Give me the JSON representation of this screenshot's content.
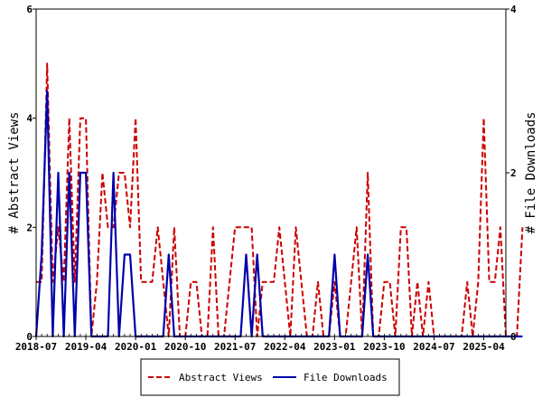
{
  "chart_data": {
    "type": "line",
    "x_start": "2018-07",
    "x_end": "2025-08",
    "x_ticks": [
      "2018-07",
      "2019-04",
      "2020-01",
      "2020-10",
      "2021-07",
      "2022-04",
      "2023-01",
      "2023-10",
      "2024-07",
      "2025-04"
    ],
    "ylabel_left": "# Abstract Views",
    "ylabel_right": "# File Downloads",
    "ylim_left": [
      0,
      6
    ],
    "ylim_right": [
      0,
      4
    ],
    "yticks_left": [
      "0",
      "2",
      "4",
      "6"
    ],
    "yticks_right": [
      "0",
      "2",
      "4"
    ],
    "series": [
      {
        "name": "Abstract Views",
        "axis": "left",
        "color": "#cc0000",
        "dash": "dashed",
        "points": [
          [
            "2018-07",
            1
          ],
          [
            "2018-08",
            1
          ],
          [
            "2018-09",
            5
          ],
          [
            "2018-10",
            1
          ],
          [
            "2018-11",
            2
          ],
          [
            "2018-12",
            1
          ],
          [
            "2019-01",
            4
          ],
          [
            "2019-02",
            1
          ],
          [
            "2019-03",
            4
          ],
          [
            "2019-04",
            4
          ],
          [
            "2019-05",
            0
          ],
          [
            "2019-06",
            1
          ],
          [
            "2019-07",
            3
          ],
          [
            "2019-08",
            2
          ],
          [
            "2019-09",
            2
          ],
          [
            "2019-10",
            3
          ],
          [
            "2019-11",
            3
          ],
          [
            "2019-12",
            2
          ],
          [
            "2020-01",
            4
          ],
          [
            "2020-02",
            1
          ],
          [
            "2020-03",
            1
          ],
          [
            "2020-04",
            1
          ],
          [
            "2020-05",
            2
          ],
          [
            "2020-06",
            1
          ],
          [
            "2020-07",
            0
          ],
          [
            "2020-08",
            2
          ],
          [
            "2020-09",
            0
          ],
          [
            "2020-10",
            0
          ],
          [
            "2020-11",
            1
          ],
          [
            "2020-12",
            1
          ],
          [
            "2021-01",
            0
          ],
          [
            "2021-02",
            0
          ],
          [
            "2021-03",
            2
          ],
          [
            "2021-04",
            0
          ],
          [
            "2021-05",
            0
          ],
          [
            "2021-06",
            1
          ],
          [
            "2021-07",
            2
          ],
          [
            "2021-08",
            2
          ],
          [
            "2021-09",
            2
          ],
          [
            "2021-10",
            2
          ],
          [
            "2021-11",
            0
          ],
          [
            "2021-12",
            1
          ],
          [
            "2022-01",
            1
          ],
          [
            "2022-02",
            1
          ],
          [
            "2022-03",
            2
          ],
          [
            "2022-04",
            1
          ],
          [
            "2022-05",
            0
          ],
          [
            "2022-06",
            2
          ],
          [
            "2022-07",
            1
          ],
          [
            "2022-08",
            0
          ],
          [
            "2022-09",
            0
          ],
          [
            "2022-10",
            1
          ],
          [
            "2022-11",
            0
          ],
          [
            "2022-12",
            0
          ],
          [
            "2023-01",
            1
          ],
          [
            "2023-02",
            0
          ],
          [
            "2023-03",
            0
          ],
          [
            "2023-04",
            1
          ],
          [
            "2023-05",
            2
          ],
          [
            "2023-06",
            0
          ],
          [
            "2023-07",
            3
          ],
          [
            "2023-08",
            0
          ],
          [
            "2023-09",
            0
          ],
          [
            "2023-10",
            1
          ],
          [
            "2023-11",
            1
          ],
          [
            "2023-12",
            0
          ],
          [
            "2024-01",
            2
          ],
          [
            "2024-02",
            2
          ],
          [
            "2024-03",
            0
          ],
          [
            "2024-04",
            1
          ],
          [
            "2024-05",
            0
          ],
          [
            "2024-06",
            1
          ],
          [
            "2024-07",
            0
          ],
          [
            "2024-08",
            0
          ],
          [
            "2024-09",
            0
          ],
          [
            "2024-10",
            0
          ],
          [
            "2024-11",
            0
          ],
          [
            "2024-12",
            0
          ],
          [
            "2025-01",
            1
          ],
          [
            "2025-02",
            0
          ],
          [
            "2025-03",
            1
          ],
          [
            "2025-04",
            4
          ],
          [
            "2025-05",
            1
          ],
          [
            "2025-06",
            1
          ],
          [
            "2025-07",
            2
          ],
          [
            "2025-08",
            0
          ],
          [
            "2025-09",
            0
          ],
          [
            "2025-10",
            0
          ],
          [
            "2025-11",
            2
          ]
        ]
      },
      {
        "name": "File Downloads",
        "axis": "right",
        "color": "#0000aa",
        "dash": "solid",
        "points": [
          [
            "2018-07",
            0
          ],
          [
            "2018-08",
            1
          ],
          [
            "2018-09",
            3
          ],
          [
            "2018-10",
            0
          ],
          [
            "2018-11",
            2
          ],
          [
            "2018-12",
            0
          ],
          [
            "2019-01",
            2
          ],
          [
            "2019-02",
            0
          ],
          [
            "2019-03",
            2
          ],
          [
            "2019-04",
            2
          ],
          [
            "2019-05",
            0
          ],
          [
            "2019-06",
            0
          ],
          [
            "2019-07",
            0
          ],
          [
            "2019-08",
            0
          ],
          [
            "2019-09",
            2
          ],
          [
            "2019-10",
            0
          ],
          [
            "2019-11",
            1
          ],
          [
            "2019-12",
            1
          ],
          [
            "2020-01",
            0
          ],
          [
            "2020-02",
            0
          ],
          [
            "2020-03",
            0
          ],
          [
            "2020-04",
            0
          ],
          [
            "2020-05",
            0
          ],
          [
            "2020-06",
            0
          ],
          [
            "2020-07",
            1
          ],
          [
            "2020-08",
            0
          ],
          [
            "2020-09",
            0
          ],
          [
            "2020-10",
            0
          ],
          [
            "2020-11",
            0
          ],
          [
            "2020-12",
            0
          ],
          [
            "2021-01",
            0
          ],
          [
            "2021-02",
            0
          ],
          [
            "2021-03",
            0
          ],
          [
            "2021-04",
            0
          ],
          [
            "2021-05",
            0
          ],
          [
            "2021-06",
            0
          ],
          [
            "2021-07",
            0
          ],
          [
            "2021-08",
            0
          ],
          [
            "2021-09",
            1
          ],
          [
            "2021-10",
            0
          ],
          [
            "2021-11",
            1
          ],
          [
            "2021-12",
            0
          ],
          [
            "2022-01",
            0
          ],
          [
            "2022-02",
            0
          ],
          [
            "2022-03",
            0
          ],
          [
            "2022-04",
            0
          ],
          [
            "2022-05",
            0
          ],
          [
            "2022-06",
            0
          ],
          [
            "2022-07",
            0
          ],
          [
            "2022-08",
            0
          ],
          [
            "2022-09",
            0
          ],
          [
            "2022-10",
            0
          ],
          [
            "2022-11",
            0
          ],
          [
            "2022-12",
            0
          ],
          [
            "2023-01",
            1
          ],
          [
            "2023-02",
            0
          ],
          [
            "2023-03",
            0
          ],
          [
            "2023-04",
            0
          ],
          [
            "2023-05",
            0
          ],
          [
            "2023-06",
            0
          ],
          [
            "2023-07",
            1
          ],
          [
            "2023-08",
            0
          ],
          [
            "2023-09",
            0
          ],
          [
            "2023-10",
            0
          ],
          [
            "2023-11",
            0
          ],
          [
            "2023-12",
            0
          ],
          [
            "2024-01",
            0
          ],
          [
            "2024-02",
            0
          ],
          [
            "2024-03",
            0
          ],
          [
            "2024-04",
            0
          ],
          [
            "2024-05",
            0
          ],
          [
            "2024-06",
            0
          ],
          [
            "2024-07",
            0
          ],
          [
            "2024-08",
            0
          ],
          [
            "2024-09",
            0
          ],
          [
            "2024-10",
            0
          ],
          [
            "2024-11",
            0
          ],
          [
            "2024-12",
            0
          ],
          [
            "2025-01",
            0
          ],
          [
            "2025-02",
            0
          ],
          [
            "2025-03",
            0
          ],
          [
            "2025-04",
            0
          ],
          [
            "2025-05",
            0
          ],
          [
            "2025-06",
            0
          ],
          [
            "2025-07",
            0
          ],
          [
            "2025-08",
            0
          ],
          [
            "2025-09",
            0
          ],
          [
            "2025-10",
            0
          ],
          [
            "2025-11",
            0
          ]
        ]
      }
    ],
    "legend_position": "bottom"
  }
}
